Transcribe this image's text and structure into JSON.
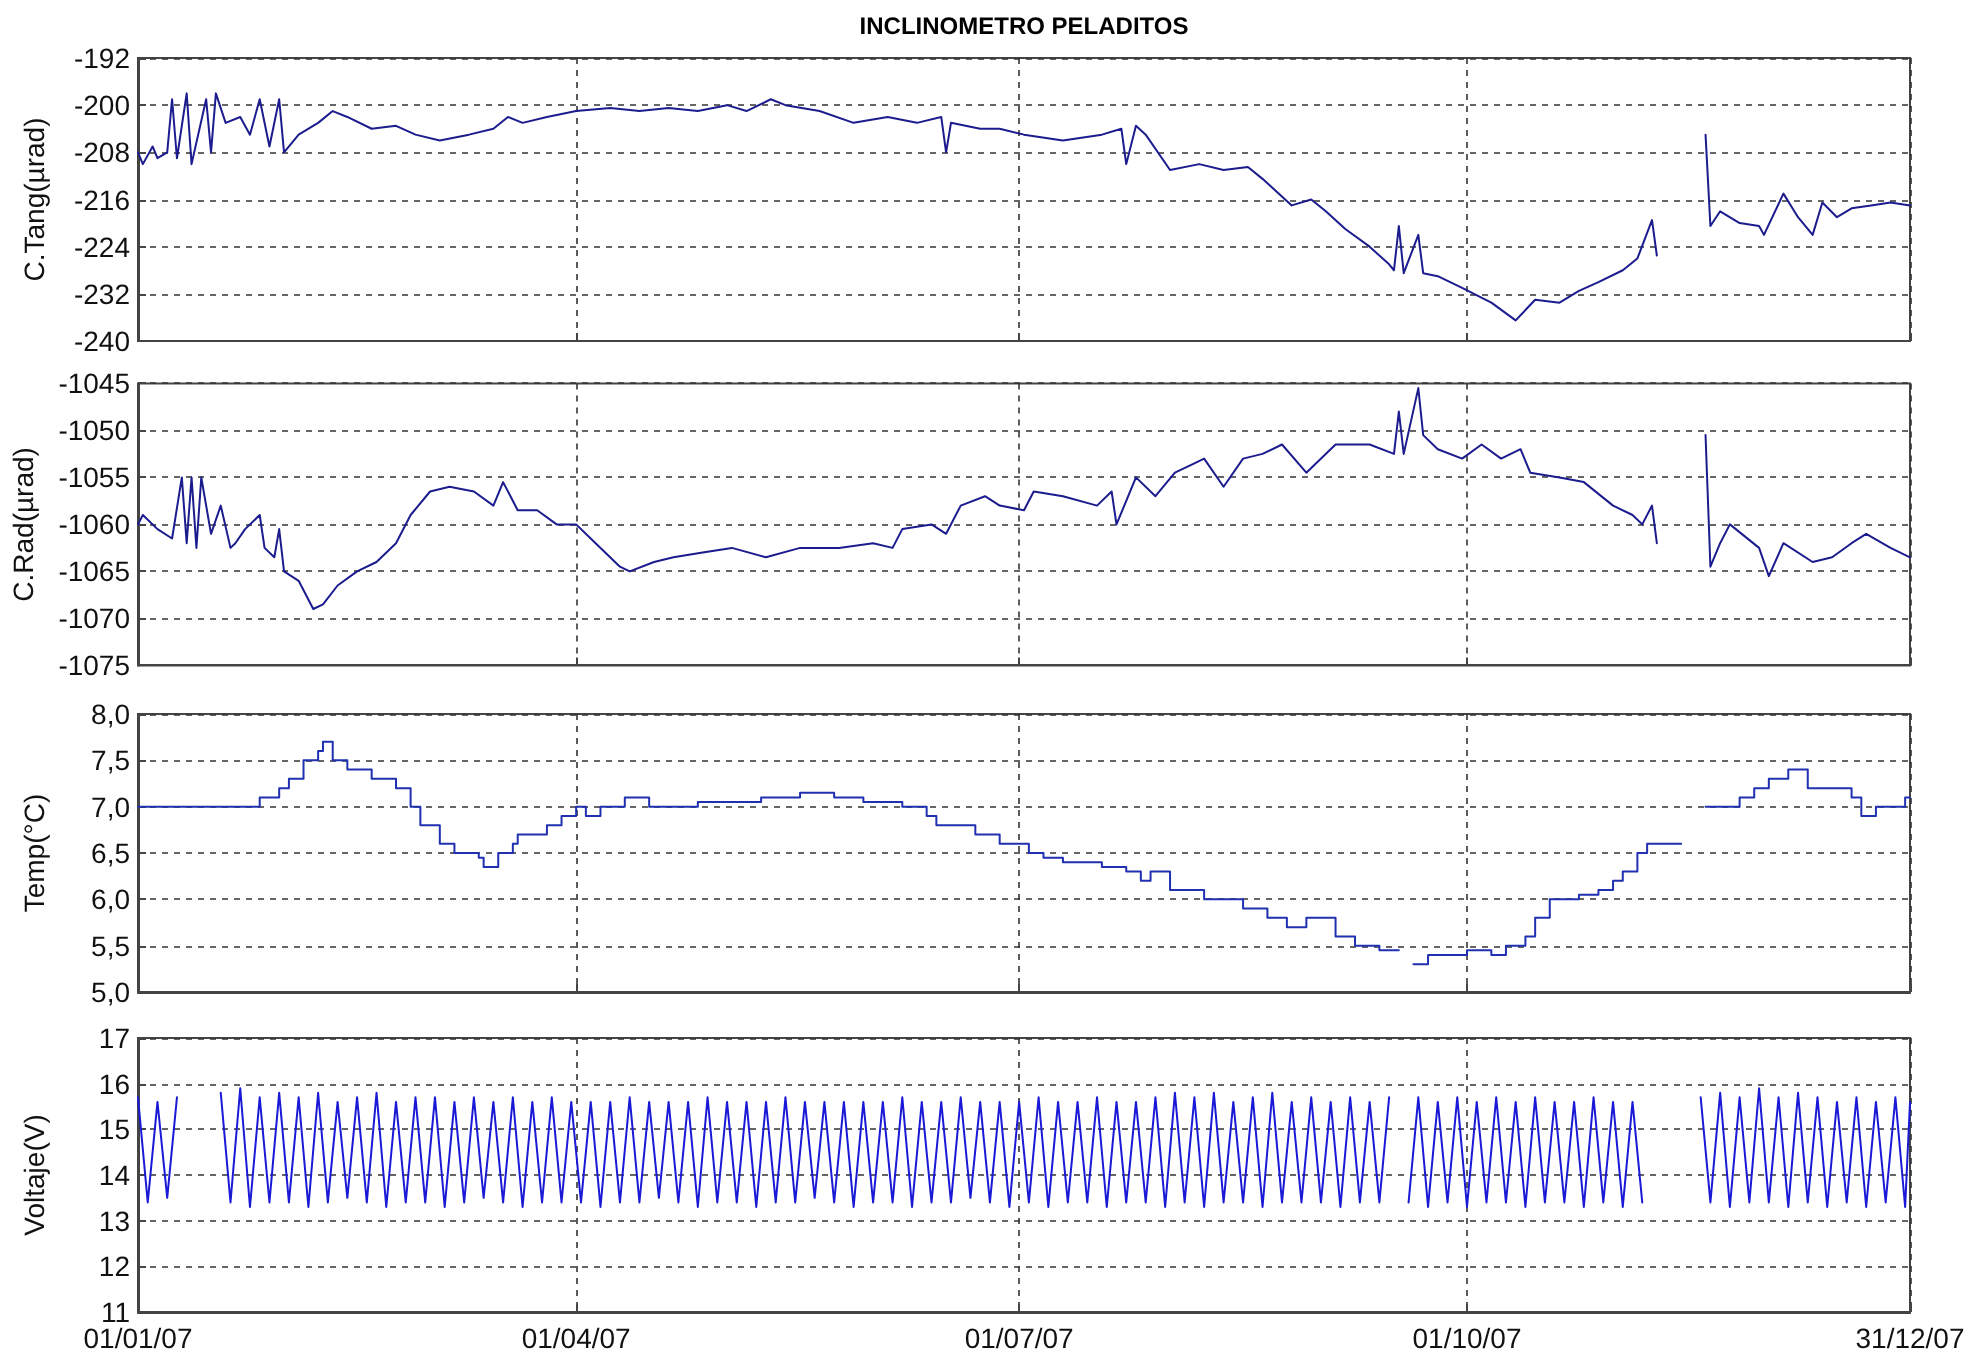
{
  "chart_data": [
    {
      "type": "line",
      "title": "INCLINOMETRO PELADITOS",
      "ylabel": "C.Tang(µrad)",
      "color": "#1c1c8e",
      "grid": true,
      "tick_labels": "y",
      "xlim": [
        "2007-01-01",
        "2007-12-31"
      ],
      "xticks": [
        {
          "value": "2007-01-01",
          "label": null
        },
        {
          "value": "2007-04-01",
          "label": null
        },
        {
          "value": "2007-07-01",
          "label": null
        },
        {
          "value": "2007-10-01",
          "label": null
        },
        {
          "value": "2007-12-31",
          "label": null
        }
      ],
      "ylim": [
        -240,
        -192
      ],
      "yticks": [
        -240,
        -232,
        -224,
        -216,
        -208,
        -200,
        -192
      ],
      "x": [
        "2007-01-01",
        "2007-01-02",
        "2007-01-04",
        "2007-01-05",
        "2007-01-07",
        "2007-01-08",
        "2007-01-09",
        "2007-01-11",
        "2007-01-12",
        "2007-01-15",
        "2007-01-16",
        "2007-01-17",
        "2007-01-19",
        "2007-01-22",
        "2007-01-24",
        "2007-01-26",
        "2007-01-28",
        "2007-01-30",
        "2007-01-31",
        "2007-02-03",
        "2007-02-07",
        "2007-02-10",
        "2007-02-13",
        "2007-02-18",
        "2007-02-23",
        "2007-02-27",
        "2007-03-04",
        "2007-03-10",
        "2007-03-15",
        "2007-03-18",
        "2007-03-21",
        "2007-03-26",
        "2007-04-01",
        "2007-04-08",
        "2007-04-14",
        "2007-04-20",
        "2007-04-26",
        "2007-05-02",
        "2007-05-06",
        "2007-05-11",
        "2007-05-14",
        "2007-05-21",
        "2007-05-28",
        "2007-06-04",
        "2007-06-10",
        "2007-06-15",
        "2007-06-16",
        "2007-06-17",
        "2007-06-23",
        "2007-06-27",
        "2007-07-02",
        "2007-07-10",
        "2007-07-18",
        "2007-07-22",
        "2007-07-23",
        "2007-07-25",
        "2007-07-27",
        "2007-08-01",
        "2007-08-07",
        "2007-08-12",
        "2007-08-17",
        "2007-08-20",
        "2007-08-26",
        "2007-08-30",
        "2007-09-02",
        "2007-09-06",
        "2007-09-11",
        "2007-09-15",
        "2007-09-16",
        "2007-09-17",
        "2007-09-18",
        "2007-09-21",
        "2007-09-22",
        "2007-09-25",
        "2007-09-30",
        "2007-10-06",
        "2007-10-11",
        "2007-10-15",
        "2007-10-20",
        "2007-10-24",
        "2007-10-28",
        "2007-11-02",
        "2007-11-05",
        "2007-11-08",
        "2007-11-09",
        "2007-11-14",
        "2007-11-19",
        "2007-11-20",
        "2007-11-22",
        "2007-11-26",
        "2007-11-30",
        "2007-12-01",
        "2007-12-05",
        "2007-12-08",
        "2007-12-11",
        "2007-12-13",
        "2007-12-16",
        "2007-12-19",
        "2007-12-23",
        "2007-12-27",
        "2007-12-31"
      ],
      "values": [
        -208,
        -210,
        -207,
        -209,
        -208,
        -199,
        -209,
        -198,
        -210,
        -199,
        -208,
        -198,
        -203,
        -202,
        -205,
        -199,
        -207,
        -199,
        -208,
        -205,
        -203,
        -201,
        -202,
        -204,
        -203.5,
        -205,
        -206,
        -205,
        -204,
        -202,
        -203,
        -202,
        -201,
        -200.5,
        -201,
        -200.5,
        -201,
        -200,
        -201,
        -199,
        -200,
        -201,
        -203,
        -202,
        -203,
        -202,
        -208,
        -203,
        -204,
        -204,
        -205,
        -206,
        -205,
        -204,
        -210,
        -203.5,
        -205,
        -211,
        -210,
        -211,
        -210.5,
        -212.5,
        -217,
        -216,
        -218,
        -221,
        -224,
        -227,
        -228,
        -220.5,
        -228.5,
        -222,
        -228.5,
        -229,
        -231,
        -233.5,
        -236.5,
        -233,
        -233.5,
        -231.5,
        -230,
        -228,
        -226,
        -219.5,
        -225.5,
        null,
        -205,
        -220.5,
        -218,
        -220,
        -220.5,
        -222,
        -215,
        -219,
        -222,
        -216.5,
        -219,
        -217.5,
        -217,
        -216.5,
        -217
      ]
    },
    {
      "type": "line",
      "ylabel": "C.Rad(µrad)",
      "color": "#1c1c8e",
      "grid": true,
      "tick_labels": "y",
      "xlim": [
        "2007-01-01",
        "2007-12-31"
      ],
      "xticks": [
        {
          "value": "2007-01-01",
          "label": null
        },
        {
          "value": "2007-04-01",
          "label": null
        },
        {
          "value": "2007-07-01",
          "label": null
        },
        {
          "value": "2007-10-01",
          "label": null
        },
        {
          "value": "2007-12-31",
          "label": null
        }
      ],
      "ylim": [
        -1075,
        -1045
      ],
      "yticks": [
        -1075,
        -1070,
        -1065,
        -1060,
        -1055,
        -1050,
        -1045
      ],
      "x": [
        "2007-01-01",
        "2007-01-02",
        "2007-01-05",
        "2007-01-08",
        "2007-01-10",
        "2007-01-11",
        "2007-01-12",
        "2007-01-13",
        "2007-01-14",
        "2007-01-16",
        "2007-01-18",
        "2007-01-20",
        "2007-01-21",
        "2007-01-23",
        "2007-01-26",
        "2007-01-27",
        "2007-01-29",
        "2007-01-30",
        "2007-01-31",
        "2007-02-03",
        "2007-02-06",
        "2007-02-08",
        "2007-02-11",
        "2007-02-15",
        "2007-02-19",
        "2007-02-23",
        "2007-02-26",
        "2007-03-02",
        "2007-03-06",
        "2007-03-11",
        "2007-03-15",
        "2007-03-17",
        "2007-03-20",
        "2007-03-24",
        "2007-03-28",
        "2007-04-01",
        "2007-04-05",
        "2007-04-10",
        "2007-04-12",
        "2007-04-17",
        "2007-04-21",
        "2007-04-27",
        "2007-05-03",
        "2007-05-10",
        "2007-05-17",
        "2007-05-25",
        "2007-06-01",
        "2007-06-05",
        "2007-06-07",
        "2007-06-13",
        "2007-06-16",
        "2007-06-19",
        "2007-06-24",
        "2007-06-27",
        "2007-07-02",
        "2007-07-04",
        "2007-07-10",
        "2007-07-17",
        "2007-07-20",
        "2007-07-21",
        "2007-07-25",
        "2007-07-29",
        "2007-08-02",
        "2007-08-06",
        "2007-08-08",
        "2007-08-12",
        "2007-08-16",
        "2007-08-20",
        "2007-08-24",
        "2007-08-29",
        "2007-09-04",
        "2007-09-11",
        "2007-09-16",
        "2007-09-17",
        "2007-09-18",
        "2007-09-21",
        "2007-09-22",
        "2007-09-25",
        "2007-09-30",
        "2007-10-04",
        "2007-10-08",
        "2007-10-12",
        "2007-10-14",
        "2007-10-20",
        "2007-10-25",
        "2007-10-31",
        "2007-11-04",
        "2007-11-06",
        "2007-11-08",
        "2007-11-09",
        "2007-11-14",
        "2007-11-19",
        "2007-11-20",
        "2007-11-22",
        "2007-11-24",
        "2007-11-30",
        "2007-12-02",
        "2007-12-05",
        "2007-12-11",
        "2007-12-15",
        "2007-12-19",
        "2007-12-22",
        "2007-12-27",
        "2007-12-31"
      ],
      "values": [
        -1060,
        -1059,
        -1060.5,
        -1061.5,
        -1055,
        -1062,
        -1055,
        -1062.5,
        -1055,
        -1061,
        -1058,
        -1062.5,
        -1062,
        -1060.5,
        -1059,
        -1062.5,
        -1063.5,
        -1060.5,
        -1065,
        -1066,
        -1069,
        -1068.5,
        -1066.5,
        -1065,
        -1064,
        -1062,
        -1059,
        -1056.5,
        -1056,
        -1056.5,
        -1058,
        -1055.5,
        -1058.5,
        -1058.5,
        -1060,
        -1060,
        -1062,
        -1064.5,
        -1065,
        -1064,
        -1063.5,
        -1063,
        -1062.5,
        -1063.5,
        -1062.5,
        -1062.5,
        -1062,
        -1062.5,
        -1060.5,
        -1060,
        -1061,
        -1058,
        -1057,
        -1058,
        -1058.5,
        -1056.5,
        -1057,
        -1058,
        -1056.5,
        -1060,
        -1055,
        -1057,
        -1054.5,
        -1053.5,
        -1053,
        -1056,
        -1053,
        -1052.5,
        -1051.5,
        -1054.5,
        -1051.5,
        -1051.5,
        -1052.5,
        -1048,
        -1052.5,
        -1045.5,
        -1050.5,
        -1052,
        -1053,
        -1051.5,
        -1053,
        -1052,
        -1054.5,
        -1055,
        -1055.5,
        -1058,
        -1059,
        -1060,
        -1058,
        -1062,
        null,
        -1050.5,
        -1064.5,
        -1062,
        -1060,
        -1062.5,
        -1065.5,
        -1062,
        -1064,
        -1063.5,
        -1062,
        -1061,
        -1062.5,
        -1063.5
      ]
    },
    {
      "type": "step",
      "ylabel": "Temp(°C)",
      "color": "#2030b0",
      "grid": true,
      "tick_labels": "y",
      "xlim": [
        "2007-01-01",
        "2007-12-31"
      ],
      "xticks": [
        {
          "value": "2007-01-01",
          "label": null
        },
        {
          "value": "2007-04-01",
          "label": null
        },
        {
          "value": "2007-07-01",
          "label": null
        },
        {
          "value": "2007-10-01",
          "label": null
        },
        {
          "value": "2007-12-31",
          "label": null
        }
      ],
      "ylim": [
        5,
        8
      ],
      "yticks": [
        {
          "value": 5,
          "label": "5,0"
        },
        {
          "value": 5.5,
          "label": "5,5"
        },
        {
          "value": 6,
          "label": "6,0"
        },
        {
          "value": 6.5,
          "label": "6,5"
        },
        {
          "value": 7,
          "label": "7,0"
        },
        {
          "value": 7.5,
          "label": "7,5"
        },
        {
          "value": 8,
          "label": "8,0"
        }
      ],
      "x": [
        "2007-01-01",
        "2007-01-09",
        "2007-01-26",
        "2007-01-30",
        "2007-02-01",
        "2007-02-04",
        "2007-02-07",
        "2007-02-08",
        "2007-02-10",
        "2007-02-13",
        "2007-02-18",
        "2007-02-23",
        "2007-02-26",
        "2007-02-28",
        "2007-03-04",
        "2007-03-07",
        "2007-03-12",
        "2007-03-13",
        "2007-03-16",
        "2007-03-19",
        "2007-03-20",
        "2007-03-26",
        "2007-03-29",
        "2007-04-01",
        "2007-04-03",
        "2007-04-06",
        "2007-04-11",
        "2007-04-16",
        "2007-04-26",
        "2007-05-09",
        "2007-05-17",
        "2007-05-24",
        "2007-05-30",
        "2007-06-07",
        "2007-06-12",
        "2007-06-14",
        "2007-06-22",
        "2007-06-27",
        "2007-07-03",
        "2007-07-06",
        "2007-07-10",
        "2007-07-18",
        "2007-07-23",
        "2007-07-26",
        "2007-07-28",
        "2007-08-01",
        "2007-08-08",
        "2007-08-16",
        "2007-08-21",
        "2007-08-25",
        "2007-08-29",
        "2007-09-04",
        "2007-09-08",
        "2007-09-13",
        "2007-09-16",
        "2007-09-17",
        "2007-09-20",
        "2007-09-23",
        "2007-10-01",
        "2007-10-06",
        "2007-10-09",
        "2007-10-13",
        "2007-10-15",
        "2007-10-18",
        "2007-10-24",
        "2007-10-28",
        "2007-10-31",
        "2007-11-02",
        "2007-11-05",
        "2007-11-07",
        "2007-11-14",
        "2007-11-19",
        "2007-11-26",
        "2007-11-29",
        "2007-12-02",
        "2007-12-06",
        "2007-12-10",
        "2007-12-19",
        "2007-12-21",
        "2007-12-24",
        "2007-12-30",
        "2007-12-31"
      ],
      "values": [
        7.0,
        7.0,
        7.1,
        7.2,
        7.3,
        7.5,
        7.6,
        7.7,
        7.5,
        7.4,
        7.3,
        7.2,
        7.0,
        6.8,
        6.6,
        6.5,
        6.45,
        6.35,
        6.5,
        6.6,
        6.7,
        6.8,
        6.9,
        7.0,
        6.9,
        7.0,
        7.1,
        7.0,
        7.05,
        7.1,
        7.15,
        7.1,
        7.05,
        7.0,
        6.9,
        6.8,
        6.7,
        6.6,
        6.5,
        6.45,
        6.4,
        6.35,
        6.3,
        6.2,
        6.3,
        6.1,
        6.0,
        5.9,
        5.8,
        5.7,
        5.8,
        5.6,
        5.5,
        5.45,
        5.45,
        null,
        5.3,
        5.4,
        5.45,
        5.4,
        5.5,
        5.6,
        5.8,
        6.0,
        6.05,
        6.1,
        6.2,
        6.3,
        6.5,
        6.6,
        null,
        7.0,
        7.1,
        7.2,
        7.3,
        7.4,
        7.2,
        7.1,
        6.9,
        7.0,
        7.1,
        7.1
      ]
    },
    {
      "type": "line",
      "ylabel": "Voltaje(V)",
      "color": "#1a1ad6",
      "grid": true,
      "xlim": [
        "2007-01-01",
        "2007-12-31"
      ],
      "xticks": [
        {
          "value": "2007-01-01",
          "label": "01/01/07"
        },
        {
          "value": "2007-04-01",
          "label": "01/04/07"
        },
        {
          "value": "2007-07-01",
          "label": "01/07/07"
        },
        {
          "value": "2007-10-01",
          "label": "01/10/07"
        },
        {
          "value": "2007-12-31",
          "label": "31/12/07"
        }
      ],
      "ylim": [
        11,
        17
      ],
      "yticks": [
        11,
        12,
        13,
        14,
        15,
        16,
        17
      ],
      "x": [
        "2007-01-01",
        "2007-01-03",
        "2007-01-05",
        "2007-01-07",
        "2007-01-09",
        "2007-01-13",
        "2007-01-18",
        "2007-01-20",
        "2007-01-22",
        "2007-01-24",
        "2007-01-26",
        "2007-01-28",
        "2007-01-30",
        "2007-02-01",
        "2007-02-03",
        "2007-02-05",
        "2007-02-07",
        "2007-02-09",
        "2007-02-11",
        "2007-02-13",
        "2007-02-15",
        "2007-02-17",
        "2007-02-19",
        "2007-02-21",
        "2007-02-23",
        "2007-02-25",
        "2007-02-27",
        "2007-03-01",
        "2007-03-03",
        "2007-03-05",
        "2007-03-07",
        "2007-03-09",
        "2007-03-11",
        "2007-03-13",
        "2007-03-15",
        "2007-03-17",
        "2007-03-19",
        "2007-03-21",
        "2007-03-23",
        "2007-03-25",
        "2007-03-27",
        "2007-03-29",
        "2007-03-31",
        "2007-04-02",
        "2007-04-04",
        "2007-04-06",
        "2007-04-08",
        "2007-04-10",
        "2007-04-12",
        "2007-04-14",
        "2007-04-16",
        "2007-04-18",
        "2007-04-20",
        "2007-04-22",
        "2007-04-24",
        "2007-04-26",
        "2007-04-28",
        "2007-04-30",
        "2007-05-02",
        "2007-05-04",
        "2007-05-06",
        "2007-05-08",
        "2007-05-10",
        "2007-05-12",
        "2007-05-14",
        "2007-05-16",
        "2007-05-18",
        "2007-05-20",
        "2007-05-22",
        "2007-05-24",
        "2007-05-26",
        "2007-05-28",
        "2007-05-30",
        "2007-06-01",
        "2007-06-03",
        "2007-06-05",
        "2007-06-07",
        "2007-06-09",
        "2007-06-11",
        "2007-06-13",
        "2007-06-15",
        "2007-06-17",
        "2007-06-19",
        "2007-06-21",
        "2007-06-23",
        "2007-06-25",
        "2007-06-27",
        "2007-06-29",
        "2007-07-01",
        "2007-07-03",
        "2007-07-05",
        "2007-07-07",
        "2007-07-09",
        "2007-07-11",
        "2007-07-13",
        "2007-07-15",
        "2007-07-17",
        "2007-07-19",
        "2007-07-21",
        "2007-07-23",
        "2007-07-25",
        "2007-07-27",
        "2007-07-29",
        "2007-07-31",
        "2007-08-02",
        "2007-08-04",
        "2007-08-06",
        "2007-08-08",
        "2007-08-10",
        "2007-08-12",
        "2007-08-14",
        "2007-08-16",
        "2007-08-18",
        "2007-08-20",
        "2007-08-22",
        "2007-08-24",
        "2007-08-26",
        "2007-08-28",
        "2007-08-30",
        "2007-09-01",
        "2007-09-03",
        "2007-09-05",
        "2007-09-07",
        "2007-09-09",
        "2007-09-11",
        "2007-09-13",
        "2007-09-15",
        "2007-09-17",
        "2007-09-19",
        "2007-09-21",
        "2007-09-23",
        "2007-09-25",
        "2007-09-27",
        "2007-09-29",
        "2007-10-01",
        "2007-10-03",
        "2007-10-05",
        "2007-10-07",
        "2007-10-09",
        "2007-10-11",
        "2007-10-13",
        "2007-10-15",
        "2007-10-17",
        "2007-10-19",
        "2007-10-21",
        "2007-10-23",
        "2007-10-25",
        "2007-10-27",
        "2007-10-29",
        "2007-10-31",
        "2007-11-02",
        "2007-11-04",
        "2007-11-06",
        "2007-11-12",
        "2007-11-18",
        "2007-11-20",
        "2007-11-22",
        "2007-11-24",
        "2007-11-26",
        "2007-11-28",
        "2007-11-30",
        "2007-12-02",
        "2007-12-04",
        "2007-12-06",
        "2007-12-08",
        "2007-12-10",
        "2007-12-12",
        "2007-12-14",
        "2007-12-16",
        "2007-12-18",
        "2007-12-20",
        "2007-12-22",
        "2007-12-24",
        "2007-12-26",
        "2007-12-28",
        "2007-12-30",
        "2007-12-31"
      ],
      "values": [
        15.7,
        13.4,
        15.6,
        13.5,
        15.7,
        null,
        15.8,
        13.4,
        15.9,
        13.3,
        15.7,
        13.4,
        15.8,
        13.4,
        15.7,
        13.3,
        15.8,
        13.4,
        15.6,
        13.5,
        15.7,
        13.4,
        15.8,
        13.3,
        15.6,
        13.4,
        15.7,
        13.4,
        15.7,
        13.3,
        15.6,
        13.4,
        15.7,
        13.5,
        15.6,
        13.4,
        15.7,
        13.3,
        15.6,
        13.4,
        15.7,
        13.4,
        15.6,
        13.4,
        15.6,
        13.3,
        15.6,
        13.4,
        15.7,
        13.4,
        15.6,
        13.5,
        15.6,
        13.4,
        15.6,
        13.3,
        15.7,
        13.4,
        15.6,
        13.4,
        15.6,
        13.3,
        15.6,
        13.4,
        15.7,
        13.4,
        15.6,
        13.5,
        15.6,
        13.4,
        15.6,
        13.3,
        15.6,
        13.4,
        15.6,
        13.4,
        15.7,
        13.3,
        15.6,
        13.4,
        15.6,
        13.4,
        15.7,
        13.5,
        15.6,
        13.4,
        15.6,
        13.3,
        15.6,
        13.4,
        15.7,
        13.3,
        15.6,
        13.4,
        15.6,
        13.4,
        15.7,
        13.3,
        15.6,
        13.4,
        15.6,
        13.4,
        15.7,
        13.3,
        15.8,
        13.4,
        15.7,
        13.3,
        15.8,
        13.4,
        15.6,
        13.4,
        15.7,
        13.3,
        15.8,
        13.4,
        15.6,
        13.4,
        15.7,
        13.4,
        15.6,
        13.3,
        15.7,
        13.4,
        15.6,
        13.4,
        15.7,
        null,
        13.4,
        15.7,
        13.3,
        15.6,
        13.4,
        15.7,
        13.3,
        15.6,
        13.4,
        15.7,
        13.4,
        15.6,
        13.3,
        15.7,
        13.4,
        15.6,
        13.4,
        15.6,
        13.3,
        15.7,
        13.4,
        15.6,
        13.3,
        15.6,
        13.4,
        null,
        15.7,
        13.4,
        15.8,
        13.3,
        15.7,
        13.4,
        15.9,
        13.4,
        15.7,
        13.3,
        15.8,
        13.4,
        15.7,
        13.3,
        15.6,
        13.4,
        15.7,
        13.3,
        15.6,
        13.4,
        15.7,
        13.3,
        15.6
      ]
    }
  ]
}
